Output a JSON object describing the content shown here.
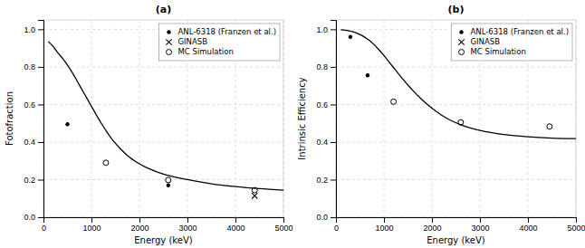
{
  "chart_data": [
    {
      "type": "scatter",
      "title": "(a)",
      "x_label": "Energy (keV)",
      "y_label": "Fotofraction",
      "xlim": [
        0,
        5000
      ],
      "ylim": [
        0,
        1.05
      ],
      "xticks": [
        0,
        1000,
        2000,
        3000,
        4000,
        5000
      ],
      "yticks": [
        {
          "value": 0,
          "label": "0.0"
        },
        {
          "value": 0.2,
          "label": "0.2"
        },
        {
          "value": 0.4,
          "label": "0.4"
        },
        {
          "value": 0.6,
          "label": "0.6"
        },
        {
          "value": 0.8,
          "label": "0.8"
        },
        {
          "value": 1.0,
          "label": "1.0"
        }
      ],
      "grid": true,
      "legend": "upper right",
      "series": [
        {
          "type": "line",
          "color": "#000000",
          "line_style": "solid",
          "x": [
            100,
            200,
            300,
            400,
            500,
            600,
            700,
            800,
            900,
            1000,
            1100,
            1200,
            1300,
            1400,
            1500,
            1600,
            1700,
            1800,
            1900,
            2000,
            2100,
            2200,
            2400,
            2600,
            2800,
            3000,
            3500,
            4000,
            4500,
            5000
          ],
          "values": [
            0.935,
            0.91,
            0.875,
            0.845,
            0.81,
            0.77,
            0.725,
            0.68,
            0.635,
            0.59,
            0.545,
            0.502,
            0.462,
            0.425,
            0.393,
            0.365,
            0.34,
            0.318,
            0.3,
            0.284,
            0.27,
            0.258,
            0.238,
            0.222,
            0.21,
            0.2,
            0.178,
            0.163,
            0.152,
            0.144
          ]
        },
        {
          "name": "ANL-6318 (Franzen et al.)",
          "type": "scatter",
          "marker": "dot",
          "color": "#000000",
          "x": [
            500,
            2600
          ],
          "values": [
            0.495,
            0.17
          ]
        },
        {
          "name": "GINASB",
          "type": "scatter",
          "marker": "x",
          "color": "#000000",
          "x": [
            4400
          ],
          "values": [
            0.114
          ]
        },
        {
          "name": "MC Simulation",
          "type": "scatter",
          "marker": "circle",
          "color": "#000000",
          "x": [
            1300,
            2600,
            4400
          ],
          "values": [
            0.29,
            0.198,
            0.144
          ]
        }
      ]
    },
    {
      "type": "scatter",
      "title": "(b)",
      "x_label": "Energy (keV)",
      "y_label": "Intrinsic Efficiency",
      "xlim": [
        0,
        5000
      ],
      "ylim": [
        0,
        1.05
      ],
      "xticks": [
        0,
        1000,
        2000,
        3000,
        4000,
        5000
      ],
      "yticks": [
        {
          "value": 0,
          "label": "0.0"
        },
        {
          "value": 0.2,
          "label": "0.2"
        },
        {
          "value": 0.4,
          "label": "0.4"
        },
        {
          "value": 0.6,
          "label": "0.6"
        },
        {
          "value": 0.8,
          "label": "0.8"
        },
        {
          "value": 1.0,
          "label": "1.0"
        }
      ],
      "grid": true,
      "legend": "upper right",
      "series": [
        {
          "type": "line",
          "color": "#000000",
          "line_style": "solid",
          "x": [
            100,
            200,
            300,
            400,
            500,
            600,
            700,
            800,
            900,
            1000,
            1100,
            1200,
            1300,
            1400,
            1500,
            1600,
            1800,
            2000,
            2200,
            2400,
            2600,
            2800,
            3000,
            3500,
            4000,
            4500,
            5000
          ],
          "values": [
            0.998,
            0.995,
            0.99,
            0.983,
            0.972,
            0.958,
            0.94,
            0.917,
            0.89,
            0.86,
            0.828,
            0.796,
            0.764,
            0.733,
            0.703,
            0.675,
            0.624,
            0.58,
            0.543,
            0.514,
            0.492,
            0.475,
            0.462,
            0.44,
            0.428,
            0.421,
            0.418
          ]
        },
        {
          "name": "ANL-6318 (Franzen et al.)",
          "type": "scatter",
          "marker": "dot",
          "color": "#000000",
          "x": [
            300,
            660
          ],
          "values": [
            0.96,
            0.755
          ]
        },
        {
          "name": "GINASB",
          "type": "scatter",
          "marker": "x",
          "color": "#000000",
          "x": [],
          "values": []
        },
        {
          "name": "MC Simulation",
          "type": "scatter",
          "marker": "circle",
          "color": "#000000",
          "x": [
            1200,
            2600,
            4450
          ],
          "values": [
            0.615,
            0.505,
            0.483
          ]
        }
      ]
    }
  ]
}
